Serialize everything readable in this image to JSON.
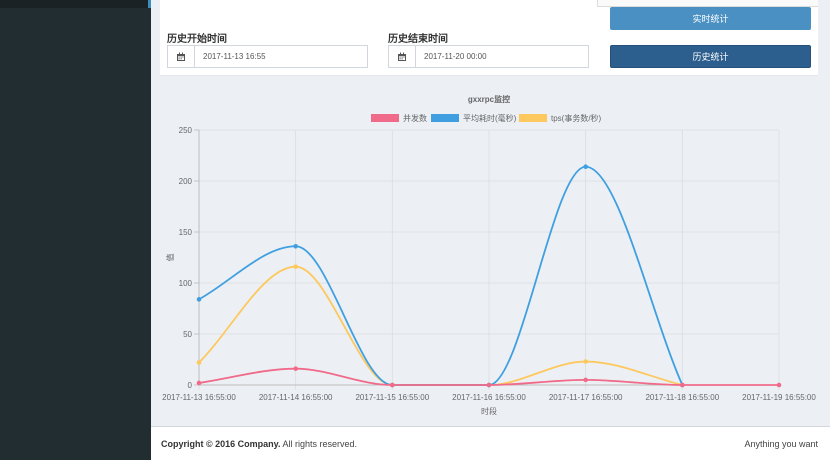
{
  "sidebar": {
    "accent_color": "#3c8dbc",
    "bg_color": "#222d32"
  },
  "filters": {
    "start_label": "历史开始时间",
    "start_value": "2017-11-13 16:55",
    "end_label": "历史结束时间",
    "end_value": "2017-11-20 00:00",
    "realtime_button": "实时统计",
    "history_button": "历史统计",
    "calendar_icon": "calendar-icon"
  },
  "chart_data": {
    "type": "line",
    "title": "gxxrpc监控",
    "xlabel": "时段",
    "ylabel": "值",
    "categories": [
      "2017-11-13 16:55:00",
      "2017-11-14 16:55:00",
      "2017-11-15 16:55:00",
      "2017-11-16 16:55:00",
      "2017-11-17 16:55:00",
      "2017-11-18 16:55:00",
      "2017-11-19 16:55:00"
    ],
    "ylim": [
      0,
      250
    ],
    "yticks": [
      0,
      50,
      100,
      150,
      200,
      250
    ],
    "grid": true,
    "legend_position": "top",
    "series": [
      {
        "name": "并发数",
        "color": "#f06b8a",
        "values": [
          2,
          16,
          0,
          0,
          5,
          0,
          0
        ]
      },
      {
        "name": "平均耗时(毫秒)",
        "color": "#3f9fe0",
        "values": [
          84,
          136,
          0,
          0,
          214,
          0,
          null
        ]
      },
      {
        "name": "tps(事务数/秒)",
        "color": "#fdc85e",
        "values": [
          22,
          116,
          0,
          0,
          23,
          0,
          null
        ]
      }
    ]
  },
  "footer": {
    "copyright_prefix": "Copyright © 2016",
    "company": "Company.",
    "rights": "All rights reserved.",
    "tagline": "Anything you want"
  }
}
